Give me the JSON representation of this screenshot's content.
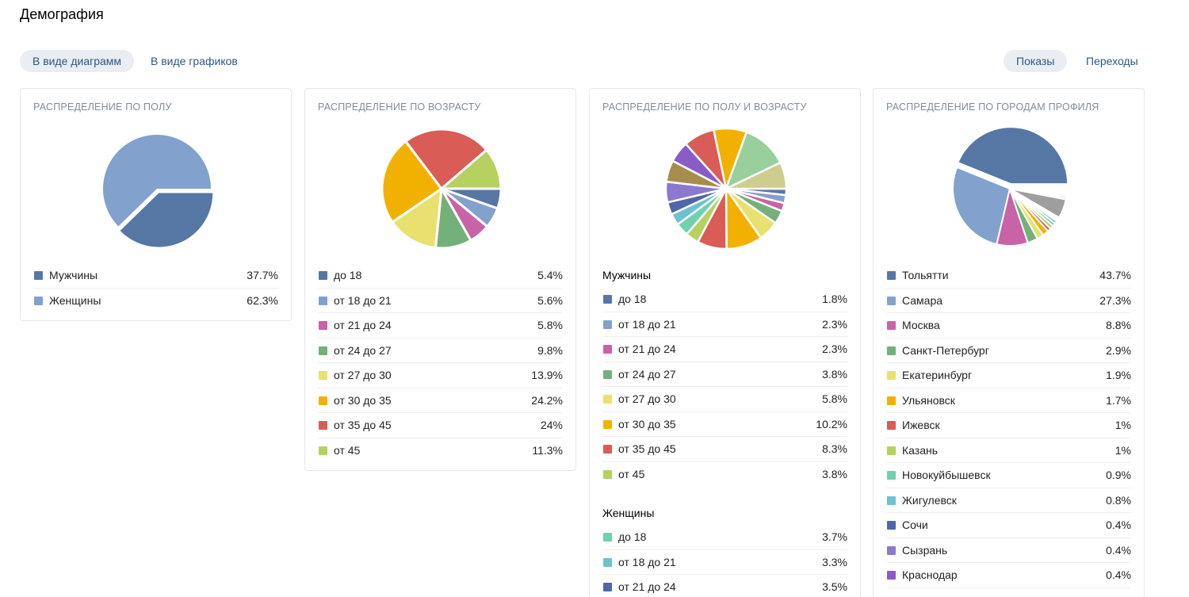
{
  "page_title": "Демография",
  "view_toggle": {
    "charts": "В виде диаграмм",
    "graphs": "В виде графиков"
  },
  "metric_toggle": {
    "impressions": "Показы",
    "clicks": "Переходы"
  },
  "chart_data": [
    {
      "id": "gender",
      "type": "pie",
      "title": "РАСПРЕДЕЛЕНИЕ ПО ПОЛУ",
      "categories": [
        "Мужчины",
        "Женщины"
      ],
      "display": [
        "37.7%",
        "62.3%"
      ],
      "values": [
        37.7,
        62.3
      ],
      "colors": [
        "#5677a4",
        "#82a1cc"
      ]
    },
    {
      "id": "age",
      "type": "pie",
      "title": "РАСПРЕДЕЛЕНИЕ ПО ВОЗРАСТУ",
      "categories": [
        "до 18",
        "от 18 до 21",
        "от 21 до 24",
        "от 24 до 27",
        "от 27 до 30",
        "от 30 до 35",
        "от 35 до 45",
        "от 45"
      ],
      "display": [
        "5.4%",
        "5.6%",
        "5.8%",
        "9.8%",
        "13.9%",
        "24.2%",
        "24%",
        "11.3%"
      ],
      "values": [
        5.4,
        5.6,
        5.8,
        9.8,
        13.9,
        24.2,
        24,
        11.3
      ],
      "colors": [
        "#5677a4",
        "#82a1cc",
        "#c863a8",
        "#74b07a",
        "#e8e16f",
        "#f2b100",
        "#d95c57",
        "#b5d160"
      ]
    },
    {
      "id": "gender_age",
      "type": "pie",
      "title": "РАСПРЕДЕЛЕНИЕ ПО ПОЛУ И ВОЗРАСТУ",
      "groups": [
        {
          "name": "Мужчины",
          "categories": [
            "до 18",
            "от 18 до 21",
            "от 21 до 24",
            "от 24 до 27",
            "от 27 до 30",
            "от 30 до 35",
            "от 35 до 45",
            "от 45"
          ],
          "display": [
            "1.8%",
            "2.3%",
            "2.3%",
            "3.8%",
            "5.8%",
            "10.2%",
            "8.3%",
            "3.8%"
          ],
          "values": [
            1.8,
            2.3,
            2.3,
            3.8,
            5.8,
            10.2,
            8.3,
            3.8
          ],
          "colors": [
            "#5677a4",
            "#82a1cc",
            "#c863a8",
            "#74b07a",
            "#e8e16f",
            "#f2b100",
            "#d95c57",
            "#b5d160"
          ]
        },
        {
          "name": "Женщины",
          "categories": [
            "до 18",
            "от 18 до 21",
            "от 21 до 24"
          ],
          "display": [
            "3.7%",
            "3.3%",
            "3.5%"
          ],
          "values": [
            3.7,
            3.3,
            3.5
          ],
          "colors": [
            "#6fd1b0",
            "#6ec1d1",
            "#5066a8"
          ]
        }
      ],
      "hidden_values": [
        5.8,
        6.1,
        6.0,
        8.8,
        9.3,
        13.0,
        7.5
      ],
      "hidden_colors": [
        "#8b79cf",
        "#a88c4c",
        "#8a5cc6",
        "#d95c57",
        "#f2b100",
        "#98cf9c",
        "#cfcd8e"
      ]
    },
    {
      "id": "cities",
      "type": "pie",
      "title": "РАСПРЕДЕЛЕНИЕ ПО ГОРОДАМ ПРОФИЛЯ",
      "categories": [
        "Тольятти",
        "Самара",
        "Москва",
        "Санкт-Петербург",
        "Екатеринбург",
        "Ульяновск",
        "Ижевск",
        "Казань",
        "Новокуйбышевск",
        "Жигулевск",
        "Сочи",
        "Сызрань",
        "Краснодар"
      ],
      "display": [
        "43.7%",
        "27.3%",
        "8.8%",
        "2.9%",
        "1.9%",
        "1.7%",
        "1%",
        "1%",
        "0.9%",
        "0.8%",
        "0.4%",
        "0.4%",
        "0.4%"
      ],
      "values": [
        43.7,
        27.3,
        8.8,
        2.9,
        1.9,
        1.7,
        1,
        1,
        0.9,
        0.8,
        0.4,
        0.4,
        0.4
      ],
      "colors": [
        "#5677a4",
        "#82a1cc",
        "#c863a8",
        "#74b07a",
        "#e8e16f",
        "#f2b100",
        "#d95c57",
        "#b5d160",
        "#6fd1b0",
        "#6ec1d1",
        "#5066a8",
        "#8b79cf",
        "#8a5cc6"
      ],
      "other_values": [
        5.4,
        0.5,
        0.5,
        0.4,
        0.4,
        0.4,
        0.4,
        0.4
      ],
      "other_colors": [
        "#9e9e9e",
        "#c26b8c",
        "#6aa37e",
        "#b0a057",
        "#7b8fd1",
        "#c88f6b",
        "#a7b96a",
        "#8f9ab0"
      ]
    }
  ]
}
